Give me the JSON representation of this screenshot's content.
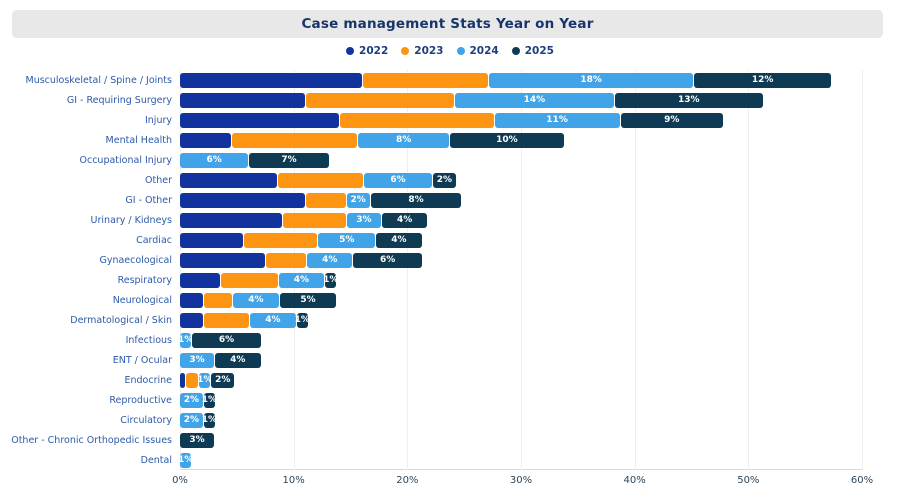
{
  "header": {
    "title": "Case management Stats Year on Year"
  },
  "colors": {
    "series_2022": "#12329e",
    "series_2023": "#fd9512",
    "series_2024": "#42a4e8",
    "series_2025": "#0e3a53",
    "title_text": "#17356b",
    "title_band_bg": "#e8e8e8",
    "category_label": "#2d5aa8",
    "axis_label": "#2f4558",
    "gridline": "#efefef"
  },
  "legend": {
    "position": "top",
    "items": [
      {
        "label": "2022",
        "color": "#12329e"
      },
      {
        "label": "2023",
        "color": "#fd9512"
      },
      {
        "label": "2024",
        "color": "#42a4e8"
      },
      {
        "label": "2025",
        "color": "#0e3a53"
      }
    ]
  },
  "chart_data": {
    "type": "bar",
    "orientation": "horizontal",
    "stacked": true,
    "title": "Case management Stats Year on Year",
    "xlabel": "",
    "ylabel": "",
    "xlim": [
      0,
      60
    ],
    "grid": true,
    "xticks": [
      0,
      10,
      20,
      30,
      40,
      50,
      60
    ],
    "xtick_labels": [
      "0%",
      "10%",
      "20%",
      "30%",
      "40%",
      "50%",
      "60%"
    ],
    "categories": [
      "Musculoskeletal / Spine / Joints",
      "GI - Requiring Surgery",
      "Injury",
      "Mental Health",
      "Occupational Injury",
      "Other",
      "GI - Other",
      "Urinary / Kidneys",
      "Cardiac",
      "Gynaecological",
      "Respiratory",
      "Neurological",
      "Dermatological / Skin",
      "Infectious",
      "ENT / Ocular",
      "Endocrine",
      "Reproductive",
      "Circulatory",
      "Other - Chronic Orthopedic Issues",
      "Dental"
    ],
    "series": [
      {
        "name": "2022",
        "color": "#12329e",
        "values": [
          16,
          11,
          14,
          4.5,
          0,
          8.5,
          11,
          9,
          5.5,
          7.5,
          3.5,
          2,
          2,
          0,
          0,
          0.4,
          0,
          0,
          0,
          0
        ],
        "labels": [
          "",
          "",
          "",
          "",
          "",
          "",
          "",
          "",
          "",
          "",
          "",
          "",
          "",
          "",
          "",
          "",
          "",
          "",
          "",
          ""
        ]
      },
      {
        "name": "2023",
        "color": "#fd9512",
        "values": [
          11,
          13,
          13.5,
          11,
          0,
          7.5,
          3.5,
          5.5,
          6.5,
          3.5,
          5,
          2.5,
          4,
          0,
          0,
          1.1,
          0,
          0,
          0,
          0
        ],
        "labels": [
          "",
          "",
          "",
          "",
          "",
          "",
          "",
          "",
          "",
          "",
          "",
          "",
          "",
          "",
          "",
          "",
          "",
          "",
          "",
          ""
        ]
      },
      {
        "name": "2024",
        "color": "#42a4e8",
        "values": [
          18,
          14,
          11,
          8,
          6,
          6,
          2,
          3,
          5,
          4,
          4,
          4,
          4,
          1,
          3,
          1,
          2,
          2,
          0,
          1
        ],
        "labels": [
          "18%",
          "14%",
          "11%",
          "8%",
          "6%",
          "6%",
          "2%",
          "3%",
          "5%",
          "4%",
          "4%",
          "4%",
          "4%",
          "1%",
          "3%",
          "1%",
          "2%",
          "2%",
          "",
          "1%"
        ]
      },
      {
        "name": "2025",
        "color": "#0e3a53",
        "values": [
          12,
          13,
          9,
          10,
          7,
          2,
          8,
          4,
          4,
          6,
          1,
          5,
          1,
          6,
          4,
          2,
          1,
          1,
          3,
          0
        ],
        "labels": [
          "12%",
          "13%",
          "9%",
          "10%",
          "7%",
          "2%",
          "8%",
          "4%",
          "4%",
          "6%",
          "1%",
          "5%",
          "1%",
          "6%",
          "4%",
          "2%",
          "1%",
          "1%",
          "3%",
          ""
        ]
      }
    ]
  }
}
